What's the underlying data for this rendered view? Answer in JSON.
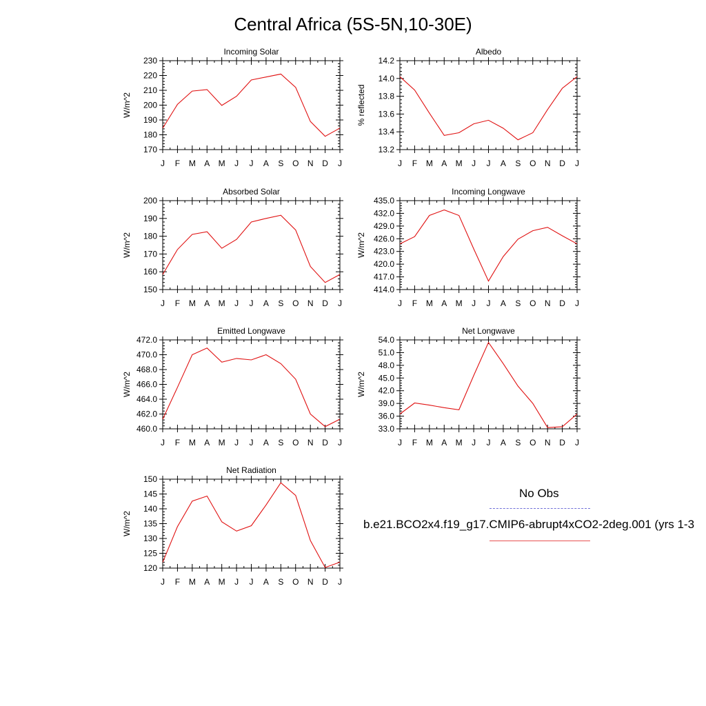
{
  "page": {
    "title": "Central Africa (5S-5N,10-30E)"
  },
  "legend": {
    "obs_label": "No Obs",
    "obs_color": "#6f6fd8",
    "model_label": "b.e21.BCO2x4.f19_g17.CMIP6-abrupt4xCO2-2deg.001 (yrs 1-3",
    "model_color": "#e85050"
  },
  "chart_data": [
    {
      "type": "line",
      "title": "Incoming Solar",
      "ylabel": "W/m^2",
      "categories": [
        "J",
        "F",
        "M",
        "A",
        "M",
        "J",
        "J",
        "A",
        "S",
        "O",
        "N",
        "D",
        "J"
      ],
      "values": [
        184.5,
        200.5,
        209.5,
        210.5,
        199.8,
        206,
        217,
        219,
        221,
        212,
        189,
        179,
        184.5
      ],
      "ylim": [
        170,
        230
      ],
      "yticks": [
        "230",
        "220",
        "210",
        "200",
        "190",
        "180",
        "170"
      ],
      "ytick_values": [
        230,
        220,
        210,
        200,
        190,
        180,
        170
      ],
      "line_color": "#e01010"
    },
    {
      "type": "line",
      "title": "Albedo",
      "ylabel": "% reflected",
      "categories": [
        "J",
        "F",
        "M",
        "A",
        "M",
        "J",
        "J",
        "A",
        "S",
        "O",
        "N",
        "D",
        "J"
      ],
      "values": [
        14.02,
        13.87,
        13.61,
        13.36,
        13.39,
        13.49,
        13.53,
        13.44,
        13.31,
        13.39,
        13.65,
        13.89,
        14.02
      ],
      "ylim": [
        13.2,
        14.2
      ],
      "yticks": [
        "14.2",
        "14.0",
        "13.8",
        "13.6",
        "13.4",
        "13.2"
      ],
      "ytick_values": [
        14.2,
        14.0,
        13.8,
        13.6,
        13.4,
        13.2
      ],
      "line_color": "#e01010"
    },
    {
      "type": "line",
      "title": "Absorbed Solar",
      "ylabel": "W/m^2",
      "categories": [
        "J",
        "F",
        "M",
        "A",
        "M",
        "J",
        "J",
        "A",
        "S",
        "O",
        "N",
        "D",
        "J"
      ],
      "values": [
        158.5,
        172.5,
        181,
        182.5,
        173.2,
        178.2,
        188,
        190,
        191.8,
        183.5,
        163,
        154,
        158.5
      ],
      "ylim": [
        150,
        200
      ],
      "yticks": [
        "200",
        "190",
        "180",
        "170",
        "160",
        "150"
      ],
      "ytick_values": [
        200,
        190,
        180,
        170,
        160,
        150
      ],
      "line_color": "#e01010"
    },
    {
      "type": "line",
      "title": "Incoming Longwave",
      "ylabel": "W/m^2",
      "categories": [
        "J",
        "F",
        "M",
        "A",
        "M",
        "J",
        "J",
        "A",
        "S",
        "O",
        "N",
        "D",
        "J"
      ],
      "values": [
        424.8,
        426.5,
        431.5,
        432.8,
        431.5,
        423.6,
        416.0,
        421.8,
        425.9,
        427.9,
        428.7,
        426.7,
        424.8
      ],
      "ylim": [
        414,
        435
      ],
      "yticks": [
        "435.0",
        "432.0",
        "429.0",
        "426.0",
        "423.0",
        "420.0",
        "417.0",
        "414.0"
      ],
      "ytick_values": [
        435,
        432,
        429,
        426,
        423,
        420,
        417,
        414
      ],
      "line_color": "#e01010"
    },
    {
      "type": "line",
      "title": "Emitted Longwave",
      "ylabel": "W/m^2",
      "categories": [
        "J",
        "F",
        "M",
        "A",
        "M",
        "J",
        "J",
        "A",
        "S",
        "O",
        "N",
        "D",
        "J"
      ],
      "values": [
        461.3,
        465.6,
        470.0,
        470.9,
        469.0,
        469.5,
        469.3,
        470.0,
        468.8,
        466.7,
        462.0,
        460.3,
        461.3
      ],
      "ylim": [
        460,
        472
      ],
      "yticks": [
        "472.0",
        "470.0",
        "468.0",
        "466.0",
        "464.0",
        "462.0",
        "460.0"
      ],
      "ytick_values": [
        472,
        470,
        468,
        466,
        464,
        462,
        460
      ],
      "line_color": "#e01010"
    },
    {
      "type": "line",
      "title": "Net Longwave",
      "ylabel": "W/m^2",
      "categories": [
        "J",
        "F",
        "M",
        "A",
        "M",
        "J",
        "J",
        "A",
        "S",
        "O",
        "N",
        "D",
        "J"
      ],
      "values": [
        36.5,
        39.1,
        38.6,
        38.0,
        37.5,
        45.6,
        53.4,
        48.4,
        43.1,
        39.0,
        33.3,
        33.5,
        36.5
      ],
      "ylim": [
        33,
        54
      ],
      "yticks": [
        "54.0",
        "51.0",
        "48.0",
        "45.0",
        "42.0",
        "39.0",
        "36.0",
        "33.0"
      ],
      "ytick_values": [
        54,
        51,
        48,
        45,
        42,
        39,
        36,
        33
      ],
      "line_color": "#e01010"
    },
    {
      "type": "line",
      "title": "Net Radiation",
      "ylabel": "W/m^2",
      "categories": [
        "J",
        "F",
        "M",
        "A",
        "M",
        "J",
        "J",
        "A",
        "S",
        "O",
        "N",
        "D",
        "J"
      ],
      "values": [
        122,
        134,
        142.6,
        144.3,
        135.6,
        132.5,
        134.3,
        141.3,
        148.8,
        144.5,
        129.3,
        120.2,
        122
      ],
      "ylim": [
        120,
        150
      ],
      "yticks": [
        "150",
        "145",
        "140",
        "135",
        "130",
        "125",
        "120"
      ],
      "ytick_values": [
        150,
        145,
        140,
        135,
        130,
        125,
        120
      ],
      "line_color": "#e01010"
    }
  ]
}
